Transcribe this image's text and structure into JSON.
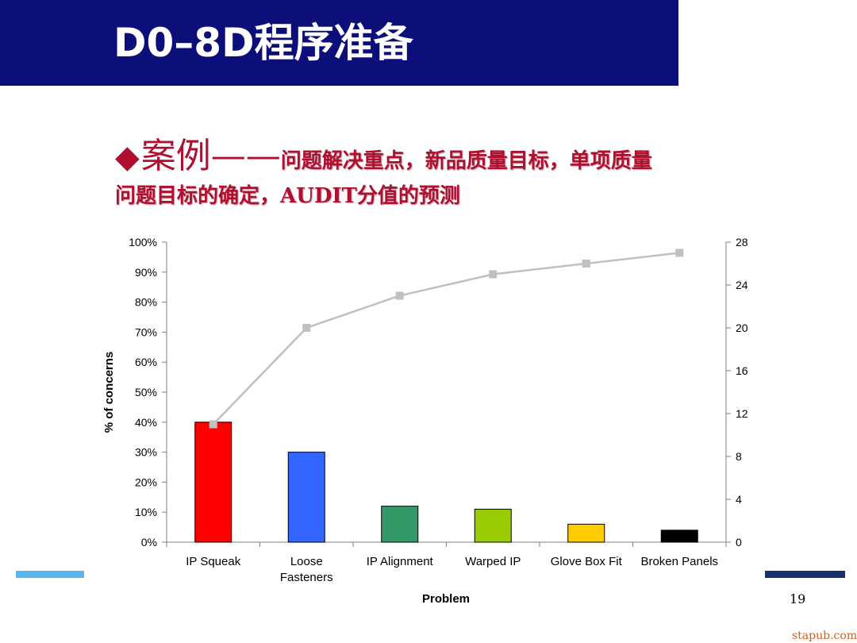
{
  "slide": {
    "title": "D0–8D程序准备",
    "heading_diamond": "◆",
    "heading_big": "案例——",
    "heading_rest": "问题解决重点，新品质量目标，单项质量",
    "heading_line2": "问题目标的确定，AUDIT分值的预测",
    "page_number": "19",
    "watermark": "stapub.com"
  },
  "chart_data": {
    "type": "bar",
    "title": "",
    "xlabel": "Problem",
    "ylabel": "% of concerns",
    "categories": [
      [
        "IP Squeak"
      ],
      [
        "Loose",
        "Fasteners"
      ],
      [
        "IP Alignment"
      ],
      [
        "Warped IP"
      ],
      [
        "Glove Box Fit"
      ],
      [
        "Broken Panels"
      ]
    ],
    "values": [
      40,
      30,
      12,
      11,
      6,
      4
    ],
    "bar_colors": [
      "#ff0000",
      "#3366ff",
      "#339966",
      "#99cc00",
      "#ffcc00",
      "#000000"
    ],
    "ylim": [
      0,
      100
    ],
    "yticks": [
      "0%",
      "10%",
      "20%",
      "30%",
      "40%",
      "50%",
      "60%",
      "70%",
      "80%",
      "90%",
      "100%"
    ],
    "cumulative_line": {
      "values": [
        11,
        20,
        23,
        25,
        26,
        27
      ],
      "color": "#c0c0c0",
      "axis": "right"
    },
    "y2lim": [
      0,
      28
    ],
    "y2ticks": [
      "0",
      "4",
      "8",
      "12",
      "16",
      "20",
      "24",
      "28"
    ],
    "grid": false,
    "legend": "none"
  }
}
